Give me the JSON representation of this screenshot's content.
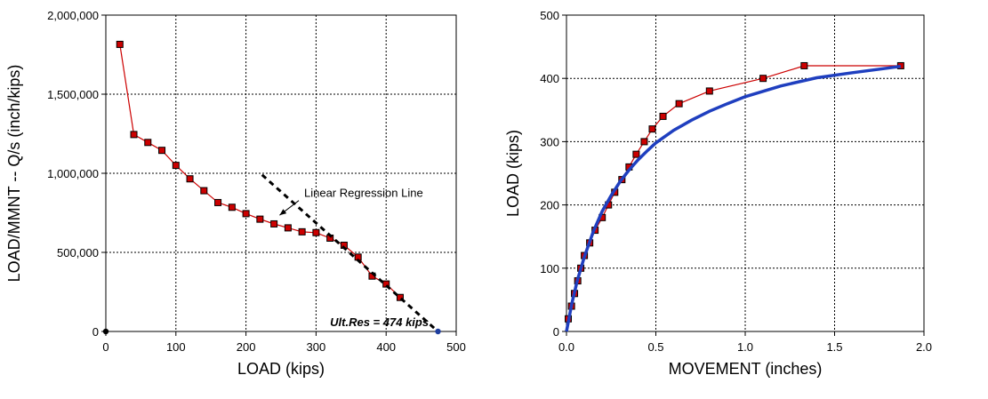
{
  "chart_data": [
    {
      "type": "line",
      "title": "",
      "xlabel": "LOAD  (kips)",
      "ylabel": "LOAD/MMNT -- Q/s  (inch/kips)",
      "xlim": [
        0,
        500
      ],
      "ylim": [
        0,
        2000000
      ],
      "xticks": [
        0,
        100,
        200,
        300,
        400,
        500
      ],
      "xtick_labels": [
        "0",
        "100",
        "200",
        "300",
        "400",
        "500"
      ],
      "yticks": [
        0,
        500000,
        1000000,
        1500000,
        2000000
      ],
      "ytick_labels": [
        "0",
        "500,000",
        "1,000,000",
        "1,500,000",
        "2,000,000"
      ],
      "grid": true,
      "series": [
        {
          "name": "",
          "style": "solid-with-markers",
          "color": "#cc0000",
          "marker_color": "#cc0000",
          "x": [
            20,
            40,
            60,
            80,
            100,
            120,
            140,
            160,
            180,
            200,
            220,
            240,
            260,
            280,
            300,
            320,
            340,
            360,
            380,
            400,
            420
          ],
          "y": [
            1815000,
            1245000,
            1195000,
            1145000,
            1050000,
            965000,
            890000,
            815000,
            785000,
            745000,
            710000,
            680000,
            655000,
            630000,
            625000,
            590000,
            545000,
            470000,
            350000,
            300000,
            215000
          ]
        },
        {
          "name": "",
          "style": "dashed",
          "color": "#000000",
          "x": [
            223,
            474
          ],
          "y": [
            990000,
            0
          ]
        }
      ],
      "points": [
        {
          "x": 0,
          "y": 0,
          "color": "#000000"
        },
        {
          "x": 474,
          "y": 0,
          "color": "#1f3f9f"
        }
      ],
      "annotations": [
        {
          "text": "Linear Regression Line",
          "x": 283,
          "y": 850000,
          "arrow_to": [
            248,
            735000
          ],
          "style": "normal"
        },
        {
          "text": "Ult.Res = 474 kips",
          "x": 320,
          "y": 35000,
          "style": "bold-italic"
        }
      ]
    },
    {
      "type": "line",
      "title": "",
      "xlabel": "MOVEMENT  (inches)",
      "ylabel": "LOAD  (kips)",
      "xlim": [
        0,
        2.0
      ],
      "ylim": [
        0,
        500
      ],
      "xticks": [
        0,
        0.5,
        1.0,
        1.5,
        2.0
      ],
      "xtick_labels": [
        "0.0",
        "0.5",
        "1.0",
        "1.5",
        "2.0"
      ],
      "yticks": [
        0,
        100,
        200,
        300,
        400,
        500
      ],
      "ytick_labels": [
        "0",
        "100",
        "200",
        "300",
        "400",
        "500"
      ],
      "grid": true,
      "series": [
        {
          "name": "",
          "style": "solid-with-markers",
          "color": "#cc0000",
          "marker_color": "#cc0000",
          "x": [
            0.01,
            0.028,
            0.045,
            0.063,
            0.08,
            0.1,
            0.13,
            0.16,
            0.2,
            0.235,
            0.27,
            0.31,
            0.35,
            0.39,
            0.435,
            0.48,
            0.54,
            0.63,
            0.8,
            1.1,
            1.33,
            1.87
          ],
          "y": [
            20,
            40,
            60,
            80,
            100,
            120,
            140,
            160,
            180,
            200,
            220,
            240,
            260,
            280,
            300,
            320,
            340,
            360,
            380,
            400,
            420,
            420
          ]
        },
        {
          "name": "",
          "style": "solid-thick",
          "color": "#1f3fbf",
          "x": [
            0.0,
            0.03,
            0.06,
            0.1,
            0.15,
            0.2,
            0.25,
            0.3,
            0.35,
            0.4,
            0.45,
            0.5,
            0.6,
            0.7,
            0.8,
            0.9,
            1.0,
            1.2,
            1.4,
            1.6,
            1.87
          ],
          "y": [
            0,
            44,
            80,
            118,
            158,
            190,
            215,
            237,
            255,
            271,
            285,
            298,
            318,
            334,
            348,
            360,
            371,
            388,
            401,
            409,
            419
          ]
        }
      ]
    }
  ]
}
